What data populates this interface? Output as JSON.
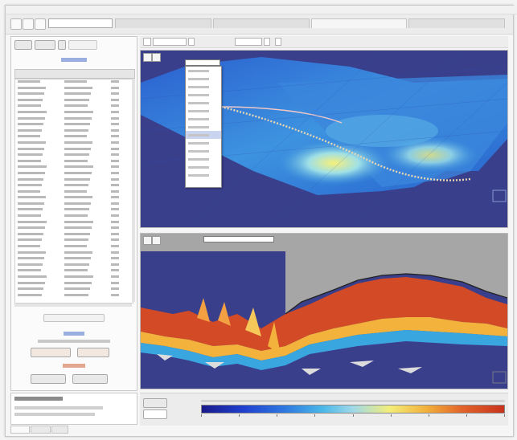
{
  "colors": {
    "accent": "#3a56b4",
    "tab_text": "#c85a3a",
    "ocean_deep": "#3a3f8c",
    "background_gray": "#e6e6e6"
  },
  "icons": {
    "toolbar": [
      "folder-icon",
      "save-icon",
      "document-icon"
    ],
    "view": [
      "zoom-icon",
      "pan-icon"
    ]
  },
  "colorbar": {
    "stops": [
      "#1a1a8a",
      "#2040d0",
      "#2f7be0",
      "#4bb8e8",
      "#9fd8e8",
      "#f2ee7a",
      "#f2b23c",
      "#e2642a",
      "#c8321c"
    ],
    "tick_count": 9
  }
}
